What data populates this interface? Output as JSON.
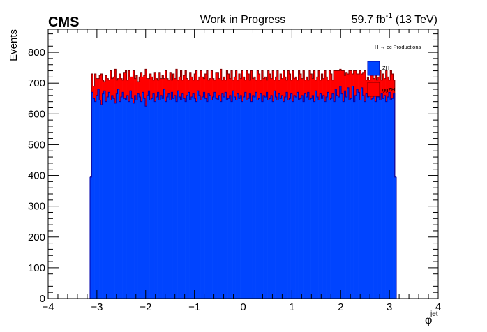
{
  "header": {
    "experiment": "CMS",
    "status": "Work in Progress",
    "luminosity_value": "59.7 fb",
    "luminosity_exp": "-1",
    "energy": " (13 TeV)"
  },
  "chart_data": {
    "type": "bar",
    "stacked": true,
    "xlabel": "φ",
    "xlabel_sup": "jet",
    "ylabel": "Events",
    "xlim": [
      -4,
      4
    ],
    "ylim": [
      0,
      875
    ],
    "xticks": [
      "−4",
      "−3",
      "−2",
      "−1",
      "0",
      "1",
      "2",
      "3",
      "4"
    ],
    "yticks": [
      "0",
      "100",
      "200",
      "300",
      "400",
      "500",
      "600",
      "700",
      "800"
    ],
    "grid": false,
    "legend_title": "H → cc Productions",
    "legend_position": "top-right",
    "bin_range": [
      -3.14159,
      3.14159
    ],
    "n_bins": 200,
    "series": [
      {
        "name": "ZH",
        "color": "#0044ff",
        "stroke": "#0000aa",
        "values": [
          395,
          670,
          650,
          640,
          660,
          680,
          645,
          630,
          665,
          675,
          640,
          655,
          670,
          645,
          660,
          650,
          635,
          665,
          680,
          640,
          655,
          670,
          650,
          645,
          660,
          640,
          675,
          650,
          635,
          660,
          645,
          665,
          655,
          640,
          670,
          650,
          625,
          660,
          675,
          645,
          650,
          665,
          640,
          655,
          670,
          645,
          660,
          650,
          680,
          640,
          655,
          665,
          645,
          670,
          650,
          660,
          640,
          675,
          655,
          645,
          665,
          650,
          640,
          660,
          670,
          645,
          655,
          665,
          650,
          640,
          675,
          660,
          645,
          655,
          670,
          650,
          640,
          665,
          660,
          645,
          655,
          670,
          650,
          645,
          660,
          640,
          665,
          655,
          670,
          645,
          650,
          660,
          640,
          675,
          655,
          645,
          665,
          650,
          660,
          640,
          655,
          670,
          645,
          650,
          665,
          640,
          660,
          655,
          670,
          645,
          650,
          665,
          640,
          660,
          655,
          670,
          645,
          650,
          660,
          640,
          675,
          655,
          645,
          665,
          650,
          660,
          640,
          655,
          670,
          645,
          650,
          665,
          640,
          660,
          655,
          670,
          645,
          650,
          660,
          640,
          665,
          655,
          670,
          645,
          650,
          660,
          640,
          675,
          655,
          645,
          665,
          650,
          660,
          640,
          655,
          670,
          645,
          650,
          665,
          640,
          680,
          660,
          655,
          690,
          665,
          640,
          675,
          655,
          685,
          645,
          650,
          690,
          640,
          660,
          680,
          670,
          645,
          685,
          660,
          640,
          665,
          655,
          670,
          645,
          650,
          660,
          640,
          675,
          655,
          645,
          665,
          650,
          660,
          640,
          655,
          670,
          645,
          650,
          665,
          395
        ]
      },
      {
        "name": "ggZH",
        "color": "#ff0000",
        "stroke": "#800000",
        "values": [
          0,
          60,
          40,
          90,
          55,
          35,
          80,
          100,
          45,
          30,
          85,
          60,
          40,
          95,
          55,
          70,
          110,
          45,
          35,
          90,
          60,
          40,
          85,
          95,
          50,
          100,
          45,
          70,
          105,
          55,
          80,
          40,
          65,
          95,
          50,
          75,
          120,
          55,
          40,
          85,
          70,
          45,
          95,
          60,
          40,
          90,
          55,
          75,
          35,
          100,
          60,
          45,
          90,
          40,
          80,
          55,
          105,
          35,
          65,
          95,
          45,
          75,
          100,
          55,
          40,
          90,
          65,
          45,
          80,
          100,
          35,
          60,
          95,
          65,
          45,
          80,
          100,
          45,
          55,
          95,
          60,
          40,
          85,
          90,
          55,
          105,
          45,
          65,
          40,
          95,
          80,
          55,
          100,
          35,
          65,
          95,
          45,
          80,
          55,
          100,
          65,
          40,
          95,
          80,
          45,
          100,
          55,
          65,
          40,
          95,
          80,
          45,
          100,
          55,
          65,
          40,
          95,
          80,
          55,
          100,
          35,
          65,
          95,
          45,
          80,
          55,
          100,
          65,
          40,
          95,
          80,
          45,
          100,
          55,
          65,
          40,
          95,
          80,
          55,
          100,
          45,
          65,
          40,
          95,
          80,
          55,
          100,
          35,
          65,
          95,
          45,
          80,
          55,
          100,
          65,
          40,
          95,
          80,
          45,
          100,
          60,
          80,
          85,
          55,
          75,
          100,
          50,
          80,
          45,
          95,
          90,
          40,
          100,
          80,
          50,
          60,
          95,
          45,
          75,
          100,
          45,
          65,
          40,
          95,
          80,
          55,
          100,
          35,
          65,
          95,
          45,
          80,
          55,
          100,
          65,
          40,
          95,
          80,
          45,
          0
        ]
      }
    ]
  }
}
